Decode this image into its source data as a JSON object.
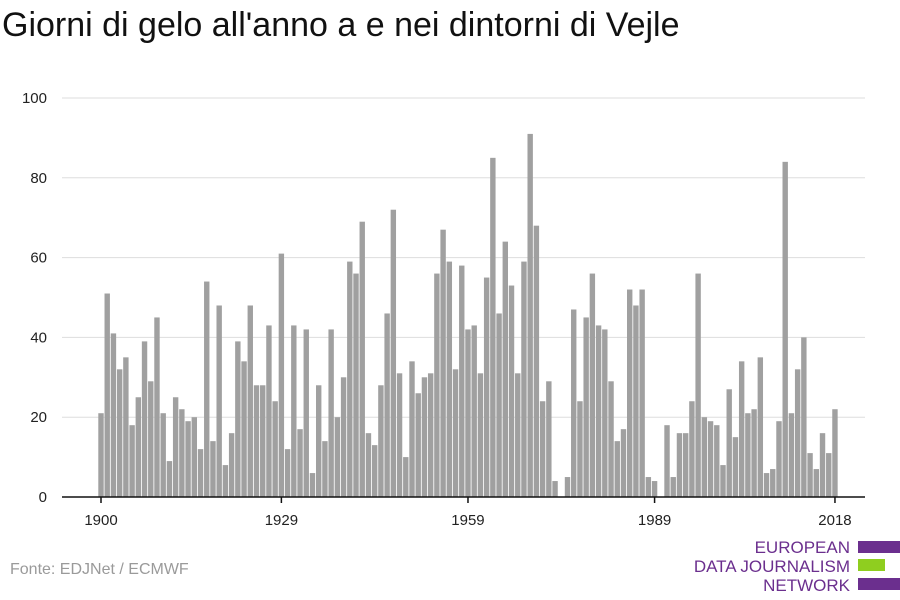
{
  "title": "Giorni di gelo all'anno a e nei dintorni di Vejle",
  "source": "Fonte: EDJNet / ECMWF",
  "logo": {
    "line1": "EUROPEAN",
    "line2": "DATA JOURNALISM",
    "line3": "NETWORK",
    "colors": [
      "#6b2f8e",
      "#8fce1f",
      "#6b2f8e"
    ]
  },
  "colors": {
    "bar": "#a0a0a0",
    "grid": "#dddddd",
    "axis": "#111111",
    "tick_text": "#222222"
  },
  "chart_data": {
    "type": "bar",
    "title": "Giorni di gelo all'anno a e nei dintorni di Vejle",
    "xlabel": "",
    "ylabel": "",
    "ylim": [
      0,
      100
    ],
    "xlim": [
      1900,
      2018
    ],
    "yticks": [
      0,
      20,
      40,
      60,
      80,
      100
    ],
    "xticks": [
      1900,
      1929,
      1959,
      1989,
      2018
    ],
    "grid": true,
    "start_year": 1900,
    "values": [
      21,
      51,
      41,
      32,
      35,
      18,
      25,
      39,
      29,
      45,
      21,
      9,
      25,
      22,
      19,
      20,
      12,
      54,
      14,
      48,
      8,
      16,
      39,
      34,
      48,
      28,
      28,
      43,
      24,
      61,
      12,
      43,
      17,
      42,
      6,
      28,
      14,
      42,
      20,
      30,
      59,
      56,
      69,
      16,
      13,
      28,
      46,
      72,
      31,
      10,
      34,
      26,
      30,
      31,
      56,
      67,
      59,
      32,
      58,
      42,
      43,
      31,
      55,
      85,
      46,
      64,
      53,
      31,
      59,
      91,
      68,
      24,
      29,
      4,
      0,
      5,
      47,
      24,
      45,
      56,
      43,
      42,
      29,
      14,
      17,
      52,
      48,
      52,
      5,
      4,
      0,
      18,
      5,
      16,
      16,
      24,
      56,
      20,
      19,
      18,
      8,
      27,
      15,
      34,
      21,
      22,
      35,
      6,
      7,
      19,
      84,
      21,
      32,
      40,
      11,
      7,
      16,
      11,
      22
    ]
  }
}
